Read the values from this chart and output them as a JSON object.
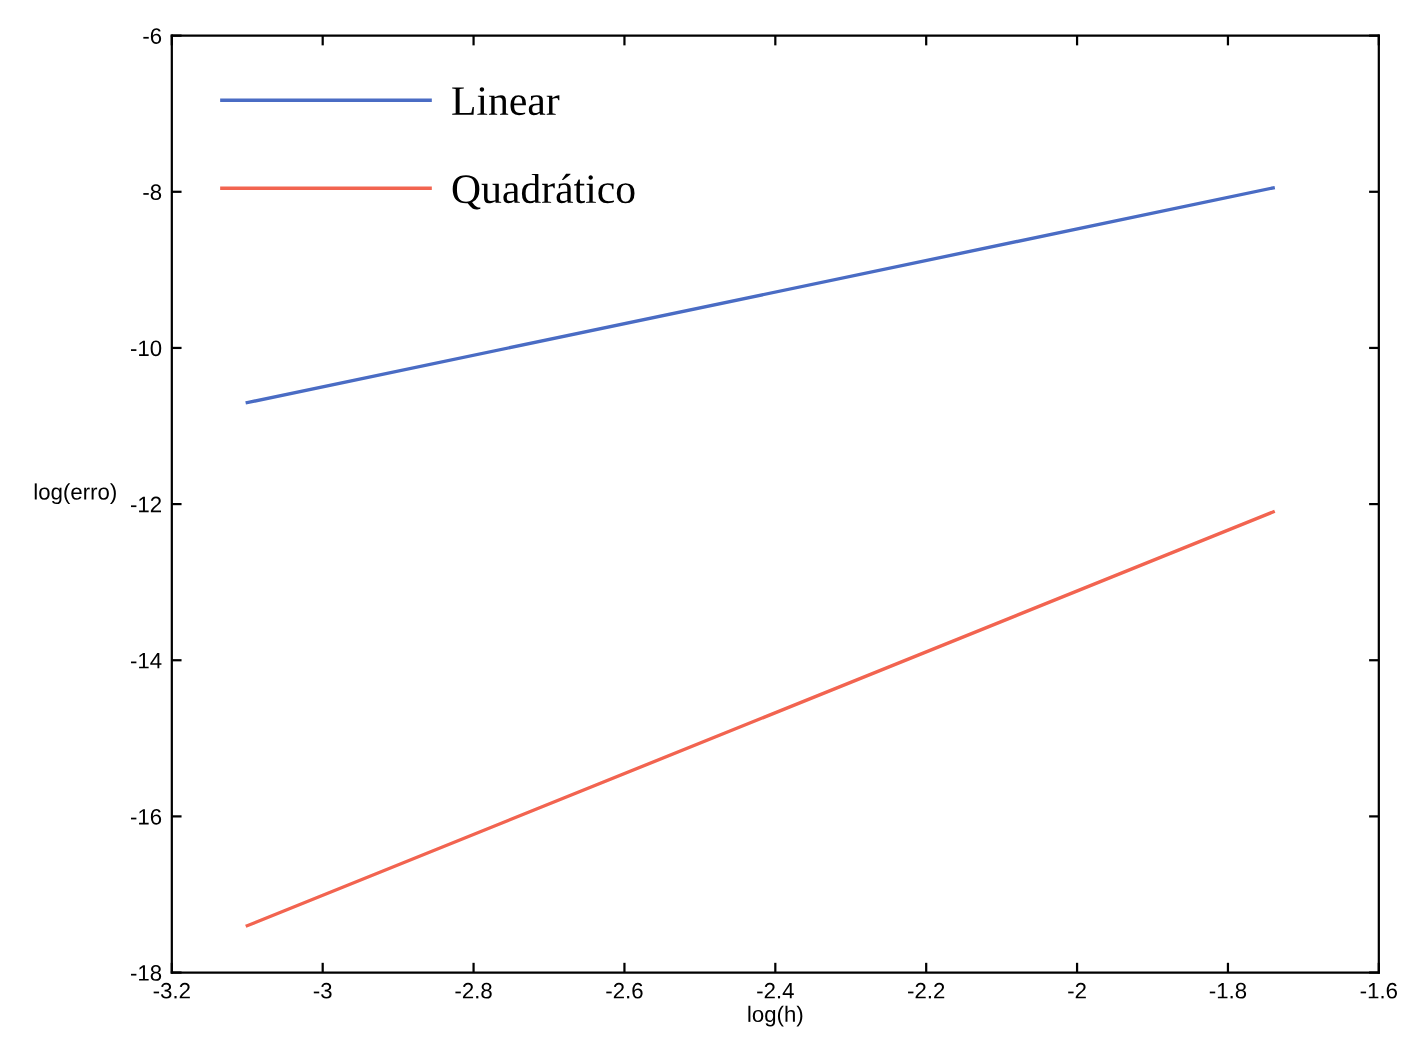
{
  "chart_data": {
    "type": "line",
    "xlabel": "log(h)",
    "ylabel": "log(erro)",
    "xlim": [
      -3.2,
      -1.6
    ],
    "xticks": [
      -3.2,
      -3,
      -2.8,
      -2.6,
      -2.4,
      -2.2,
      -2,
      -1.8,
      -1.6
    ],
    "ylim": [
      -18,
      -6
    ],
    "yticks": [
      -18,
      -16,
      -14,
      -12,
      -10,
      -8,
      -6
    ],
    "grid": false,
    "legend": "top left",
    "marker": "none",
    "line_style": "solid",
    "x": [
      -3.1,
      -1.74
    ],
    "series": [
      {
        "name": "Linear",
        "color": "#4a6cc4",
        "values": [
          -10.7,
          -7.95
        ]
      },
      {
        "name": "Quadrático",
        "color": "#f26450",
        "values": [
          -17.4,
          -12.1
        ]
      }
    ]
  }
}
